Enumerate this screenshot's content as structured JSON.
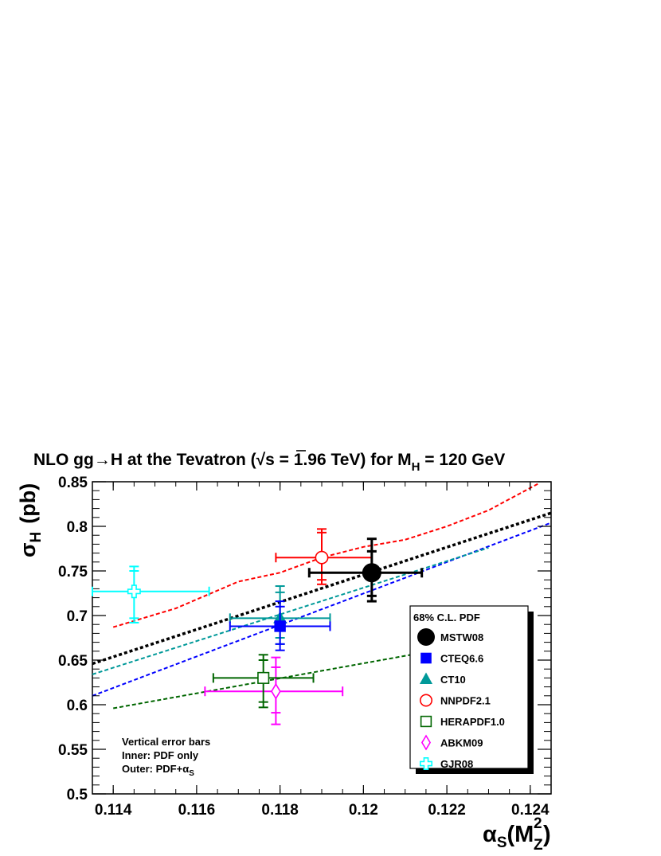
{
  "chart_data": {
    "type": "scatter",
    "title_parts": {
      "a": "NLO gg",
      "arrow": "→",
      "b": "H at the Tevatron (",
      "root": "√",
      "c": "s = 1.96 TeV) for M",
      "sub": "H",
      "d": " = 120 GeV"
    },
    "ylabel": {
      "sym": "σ",
      "sub": "H",
      "rest": "(pb)"
    },
    "xlabel": {
      "sym": "α",
      "sub": "S",
      "open": "(M",
      "sup": "2",
      "sub2": "Z",
      "close": ")"
    },
    "xlim": [
      0.1135,
      0.1245
    ],
    "ylim": [
      0.5,
      0.85
    ],
    "x_ticks": [
      "0.114",
      "0.116",
      "0.118",
      "0.12",
      "0.122",
      "0.124"
    ],
    "y_ticks": [
      "0.5",
      "0.55",
      "0.6",
      "0.65",
      "0.7",
      "0.75",
      "0.8",
      "0.85"
    ],
    "legend": {
      "header": "68% C.L. PDF",
      "position": "right"
    },
    "note": {
      "line1": "Vertical error bars",
      "line2": "Inner: PDF only",
      "line3": "Outer: PDF+",
      "alpha": "α",
      "sub": "S"
    },
    "series": [
      {
        "name": "MSTW08",
        "color": "#000000",
        "marker": "filled-circle",
        "x": 0.1202,
        "y": 0.748,
        "x_err": [
          0.1187,
          0.1214
        ],
        "y_inner": [
          0.722,
          0.772
        ],
        "y_outer": [
          0.716,
          0.786
        ],
        "curve": {
          "x": [
            0.1135,
            0.1245
          ],
          "y": [
            0.646,
            0.815
          ]
        }
      },
      {
        "name": "CTEQ6.6",
        "color": "#0000ff",
        "marker": "filled-square",
        "x": 0.118,
        "y": 0.688,
        "x_err": [
          0.1168,
          0.1192
        ],
        "y_inner": [
          0.668,
          0.71
        ],
        "y_outer": [
          0.661,
          0.716
        ],
        "curve": {
          "x": [
            0.1135,
            0.1245
          ],
          "y": [
            0.61,
            0.804
          ]
        }
      },
      {
        "name": "CT10",
        "color": "#009999",
        "marker": "filled-triangle",
        "x": 0.118,
        "y": 0.697,
        "x_err": [
          0.1168,
          0.1192
        ],
        "y_inner": [
          0.675,
          0.726
        ],
        "y_outer": [
          0.668,
          0.733
        ],
        "curve": {
          "x": [
            0.1135,
            0.123
          ],
          "y": [
            0.634,
            0.776
          ]
        }
      },
      {
        "name": "NNPDF2.1",
        "color": "#ff0000",
        "marker": "open-circle",
        "x": 0.119,
        "y": 0.765,
        "x_err": [
          0.1179,
          0.1202
        ],
        "y_inner": [
          0.74,
          0.793
        ],
        "y_outer": [
          0.735,
          0.797
        ],
        "curve": {
          "x": [
            0.114,
            0.1155,
            0.117,
            0.118,
            0.119,
            0.12,
            0.121,
            0.122,
            0.123,
            0.1242
          ],
          "y": [
            0.687,
            0.708,
            0.738,
            0.748,
            0.765,
            0.777,
            0.785,
            0.8,
            0.818,
            0.848
          ]
        }
      },
      {
        "name": "HERAPDF1.0",
        "color": "#006600",
        "marker": "open-square",
        "x": 0.1176,
        "y": 0.63,
        "x_err": [
          0.1164,
          0.1188
        ],
        "y_inner": [
          0.603,
          0.65
        ],
        "y_outer": [
          0.597,
          0.656
        ],
        "curve": {
          "x": [
            0.114,
            0.1215
          ],
          "y": [
            0.596,
            0.659
          ]
        }
      },
      {
        "name": "ABKM09",
        "color": "#ff00ff",
        "marker": "open-diamond",
        "x": 0.1179,
        "y": 0.615,
        "x_err": [
          0.1162,
          0.1195
        ],
        "y_inner": [
          0.591,
          0.642
        ],
        "y_outer": [
          0.578,
          0.653
        ]
      },
      {
        "name": "GJR08",
        "color": "#00ffff",
        "marker": "open-cross",
        "x": 0.1145,
        "y": 0.727,
        "x_err": [
          0.1135,
          0.1163
        ],
        "y_inner": [
          0.697,
          0.75
        ],
        "y_outer": [
          0.692,
          0.755
        ]
      }
    ]
  }
}
